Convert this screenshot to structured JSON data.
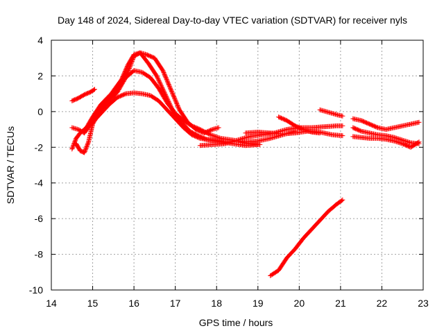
{
  "chart_data": {
    "type": "scatter",
    "title": "Day 148 of 2024, Sidereal Day-to-day VTEC variation (SDTVAR) for receiver nyls",
    "xlabel": "GPS time / hours",
    "ylabel": "SDTVAR / TECUs",
    "xlim": [
      14,
      23
    ],
    "ylim": [
      -10,
      4
    ],
    "xticks": [
      14,
      15,
      16,
      17,
      18,
      19,
      20,
      21,
      22,
      23
    ],
    "yticks": [
      -10,
      -8,
      -6,
      -4,
      -2,
      0,
      2,
      4
    ],
    "grid": true,
    "marker": "plus",
    "color": "#ff0000",
    "series": [
      {
        "name": "track-1",
        "x": [
          14.5,
          14.65,
          14.8,
          14.95,
          15.05
        ],
        "y": [
          0.6,
          0.75,
          0.95,
          1.1,
          1.25
        ]
      },
      {
        "name": "track-2",
        "x": [
          14.5,
          14.65,
          14.8,
          14.95,
          15.1,
          15.3,
          15.5,
          15.7,
          15.85,
          16.0,
          16.15,
          16.3,
          16.5,
          16.7,
          16.9,
          17.1,
          17.3,
          17.5,
          17.7,
          17.9,
          18.05
        ],
        "y": [
          -0.9,
          -1.0,
          -1.2,
          -0.7,
          -0.1,
          0.5,
          1.0,
          1.6,
          2.2,
          3.1,
          3.3,
          3.2,
          3.0,
          2.3,
          1.2,
          0.1,
          -0.6,
          -1.0,
          -1.2,
          -1.0,
          -0.9
        ]
      },
      {
        "name": "track-3",
        "x": [
          14.5,
          14.6,
          14.7,
          14.85,
          15.0,
          15.2,
          15.45,
          15.7,
          15.85,
          16.0,
          16.15,
          16.35,
          16.55,
          16.75,
          16.95,
          17.15,
          17.35,
          17.55,
          17.75,
          17.95,
          18.2,
          18.5,
          18.8,
          19.05
        ],
        "y": [
          -2.1,
          -1.5,
          -1.2,
          -0.9,
          -0.3,
          0.4,
          1.0,
          1.8,
          2.6,
          3.2,
          3.3,
          2.7,
          2.0,
          1.0,
          0.0,
          -0.6,
          -1.1,
          -1.35,
          -1.55,
          -1.6,
          -1.7,
          -1.7,
          -1.8,
          -1.85
        ]
      },
      {
        "name": "track-4",
        "x": [
          14.6,
          14.7,
          14.8,
          14.9,
          15.0,
          15.2,
          15.4,
          15.6,
          15.8,
          16.0,
          16.2,
          16.4,
          16.6,
          16.8,
          17.0,
          17.2,
          17.4,
          17.6,
          17.85,
          18.1,
          18.4,
          18.7,
          19.0,
          19.3,
          19.6,
          19.9
        ],
        "y": [
          -1.8,
          -2.2,
          -2.3,
          -1.7,
          -0.7,
          0.1,
          0.6,
          1.1,
          1.9,
          2.3,
          2.2,
          1.9,
          1.3,
          0.5,
          -0.1,
          -0.5,
          -0.8,
          -1.0,
          -1.3,
          -1.5,
          -1.6,
          -1.7,
          -1.65,
          -1.5,
          -1.3,
          -1.1
        ]
      },
      {
        "name": "track-5",
        "x": [
          14.8,
          15.0,
          15.2,
          15.4,
          15.6,
          15.8,
          16.0,
          16.2,
          16.4,
          16.6,
          16.8,
          17.0,
          17.2,
          17.4,
          17.6,
          17.85,
          18.1,
          18.4,
          18.7,
          19.0
        ],
        "y": [
          -1.0,
          -0.6,
          -0.1,
          0.4,
          0.8,
          1.0,
          1.05,
          1.0,
          0.9,
          0.6,
          0.1,
          -0.4,
          -0.9,
          -1.3,
          -1.5,
          -1.6,
          -1.7,
          -1.8,
          -1.9,
          -1.85
        ]
      },
      {
        "name": "track-6",
        "x": [
          17.6,
          17.9,
          18.2,
          18.5,
          18.8,
          19.1,
          19.4,
          19.7,
          20.0,
          20.3,
          20.6,
          20.9,
          21.05
        ],
        "y": [
          -1.9,
          -1.85,
          -1.8,
          -1.6,
          -1.4,
          -1.3,
          -1.2,
          -1.0,
          -0.9,
          -0.9,
          -0.85,
          -0.8,
          -0.8
        ]
      },
      {
        "name": "track-7",
        "x": [
          18.7,
          19.0,
          19.3,
          19.6,
          19.9,
          20.2,
          20.5,
          20.8,
          21.05
        ],
        "y": [
          -1.2,
          -1.15,
          -1.2,
          -1.25,
          -1.2,
          -1.1,
          -1.15,
          -1.3,
          -1.35
        ]
      },
      {
        "name": "track-8",
        "x": [
          19.5,
          19.7,
          19.9,
          20.1,
          20.3,
          20.5
        ],
        "y": [
          -0.3,
          -0.5,
          -0.8,
          -1.0,
          -1.15,
          -1.2
        ]
      },
      {
        "name": "track-9",
        "x": [
          20.5,
          20.65,
          20.8,
          20.95,
          21.05
        ],
        "y": [
          0.1,
          0.0,
          -0.1,
          -0.2,
          -0.25
        ]
      },
      {
        "name": "track-10",
        "x": [
          21.3,
          21.5,
          21.7,
          21.9,
          22.1,
          22.3,
          22.5,
          22.7,
          22.9
        ],
        "y": [
          -0.4,
          -0.5,
          -0.7,
          -0.9,
          -1.0,
          -0.9,
          -0.8,
          -0.7,
          -0.6
        ]
      },
      {
        "name": "track-11",
        "x": [
          21.3,
          21.5,
          21.7,
          21.9,
          22.1,
          22.3,
          22.5,
          22.7,
          22.9
        ],
        "y": [
          -0.9,
          -1.1,
          -1.2,
          -1.3,
          -1.35,
          -1.45,
          -1.6,
          -1.75,
          -1.8
        ]
      },
      {
        "name": "track-12",
        "x": [
          21.3,
          21.5,
          21.7,
          21.9,
          22.1,
          22.3,
          22.5,
          22.7,
          22.9
        ],
        "y": [
          -1.4,
          -1.45,
          -1.5,
          -1.5,
          -1.55,
          -1.65,
          -1.8,
          -2.0,
          -1.7
        ]
      },
      {
        "name": "track-13",
        "x": [
          19.3,
          19.5,
          19.7,
          19.9,
          20.1,
          20.3,
          20.5,
          20.7,
          20.9,
          21.05
        ],
        "y": [
          -9.2,
          -8.9,
          -8.2,
          -7.7,
          -7.1,
          -6.6,
          -6.1,
          -5.6,
          -5.2,
          -4.95
        ]
      }
    ]
  }
}
